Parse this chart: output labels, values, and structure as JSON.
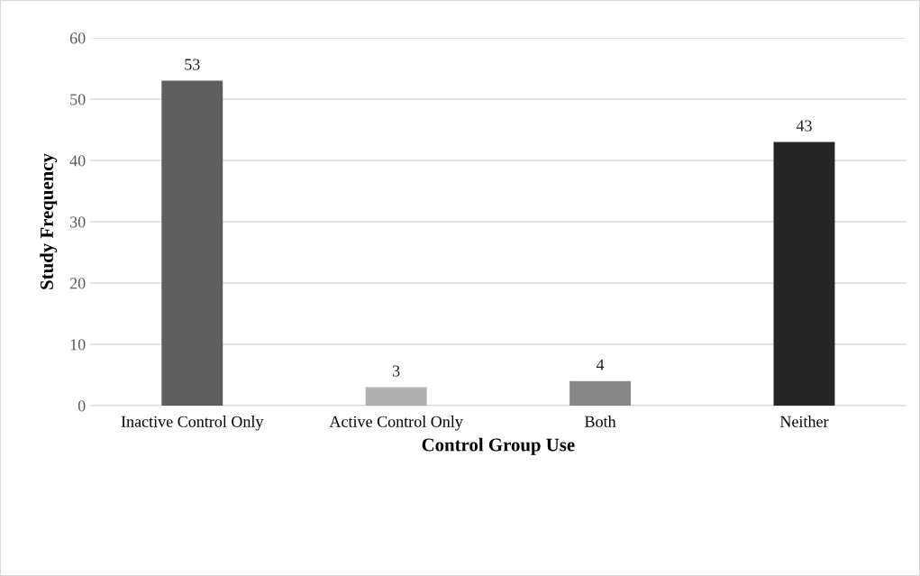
{
  "chart_data": {
    "type": "bar",
    "xlabel": "Control Group Use",
    "ylabel": "Study Frequency",
    "categories": [
      "Inactive Control Only",
      "Active Control Only",
      "Both",
      "Neither"
    ],
    "values": [
      53,
      3,
      4,
      43
    ],
    "colors": [
      "#5f5f5f",
      "#b0b0b0",
      "#878787",
      "#262626"
    ],
    "ylim": [
      0,
      60
    ],
    "yticks": [
      0,
      10,
      20,
      30,
      40,
      50,
      60
    ],
    "grid": "y",
    "data_labels": true
  }
}
